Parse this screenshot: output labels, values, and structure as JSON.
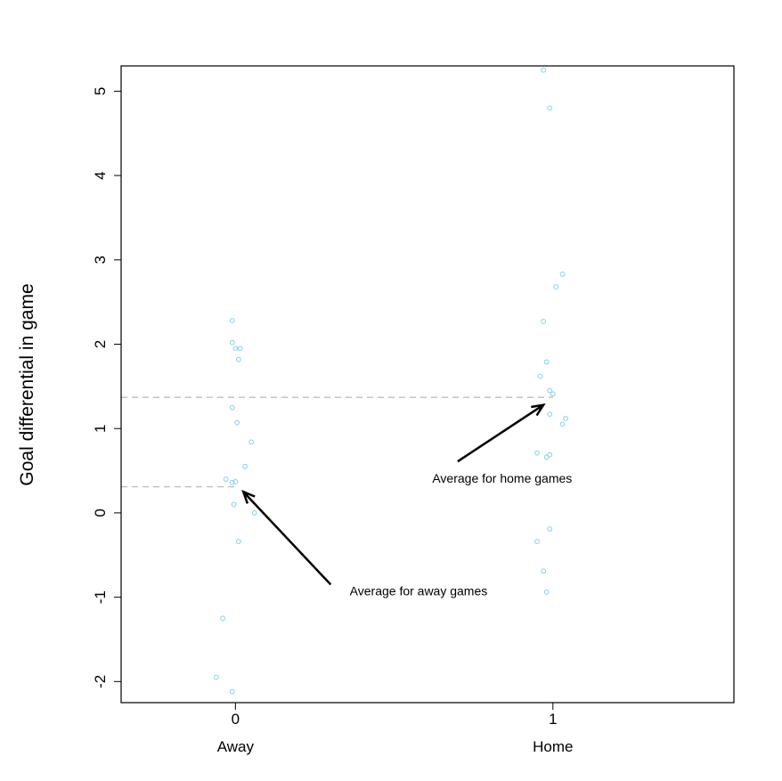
{
  "chart_data": {
    "type": "scatter",
    "ylabel": "Goal differential in game",
    "xlabel": "",
    "xlim": [
      -0.36,
      1.57
    ],
    "ylim": [
      -2.25,
      5.3
    ],
    "x_ticks": [
      0,
      1
    ],
    "x_tick_labels": [
      "0",
      "1"
    ],
    "x_category_labels": [
      "Away",
      "Home"
    ],
    "y_ticks": [
      -2,
      -1,
      0,
      1,
      2,
      3,
      4,
      5
    ],
    "y_tick_labels": [
      "-2",
      "-1",
      "0",
      "1",
      "2",
      "3",
      "4",
      "5"
    ],
    "grid": false,
    "point_color": "#87ceeb",
    "reference_line_color": "#bebebe",
    "series": [
      {
        "values": [
          {
            "x": -0.01,
            "y": 2.28
          },
          {
            "x": -0.01,
            "y": 2.02
          },
          {
            "x": 0.0,
            "y": 1.95
          },
          {
            "x": 0.015,
            "y": 1.95
          },
          {
            "x": 0.01,
            "y": 1.82
          },
          {
            "x": -0.01,
            "y": 1.25
          },
          {
            "x": 0.005,
            "y": 1.07
          },
          {
            "x": 0.05,
            "y": 0.84
          },
          {
            "x": 0.03,
            "y": 0.55
          },
          {
            "x": -0.03,
            "y": 0.4
          },
          {
            "x": -0.01,
            "y": 0.36
          },
          {
            "x": 0.0,
            "y": 0.37
          },
          {
            "x": -0.005,
            "y": 0.1
          },
          {
            "x": 0.06,
            "y": 0.0
          },
          {
            "x": 0.01,
            "y": -0.34
          },
          {
            "x": -0.04,
            "y": -1.25
          },
          {
            "x": -0.06,
            "y": -1.95
          },
          {
            "x": -0.01,
            "y": -2.12
          }
        ]
      },
      {
        "values": [
          {
            "x": 0.97,
            "y": 5.25
          },
          {
            "x": 0.99,
            "y": 4.8
          },
          {
            "x": 1.03,
            "y": 2.83
          },
          {
            "x": 1.01,
            "y": 2.68
          },
          {
            "x": 0.97,
            "y": 2.27
          },
          {
            "x": 0.98,
            "y": 1.79
          },
          {
            "x": 0.96,
            "y": 1.62
          },
          {
            "x": 0.99,
            "y": 1.45
          },
          {
            "x": 1.0,
            "y": 1.41
          },
          {
            "x": 0.99,
            "y": 1.17
          },
          {
            "x": 1.04,
            "y": 1.12
          },
          {
            "x": 1.03,
            "y": 1.05
          },
          {
            "x": 0.95,
            "y": 0.71
          },
          {
            "x": 0.99,
            "y": 0.69
          },
          {
            "x": 0.98,
            "y": 0.66
          },
          {
            "x": 0.99,
            "y": -0.19
          },
          {
            "x": 0.95,
            "y": -0.34
          },
          {
            "x": 0.97,
            "y": -0.69
          },
          {
            "x": 0.98,
            "y": -0.94
          }
        ]
      }
    ],
    "reference_lines": [
      {
        "y": 0.31,
        "x_from": -0.36,
        "x_to": 0.0
      },
      {
        "y": 1.37,
        "x_from": -0.36,
        "x_to": 1.0
      }
    ],
    "annotations": [
      {
        "text": "Average for away games",
        "text_x": 0.36,
        "text_y": -0.98,
        "arrow_from": [
          0.3,
          -0.85
        ],
        "arrow_to": [
          0.025,
          0.25
        ]
      },
      {
        "text": "Average for home games",
        "text_x": 0.62,
        "text_y": 0.36,
        "arrow_from": [
          0.7,
          0.61
        ],
        "arrow_to": [
          0.97,
          1.28
        ]
      }
    ]
  }
}
